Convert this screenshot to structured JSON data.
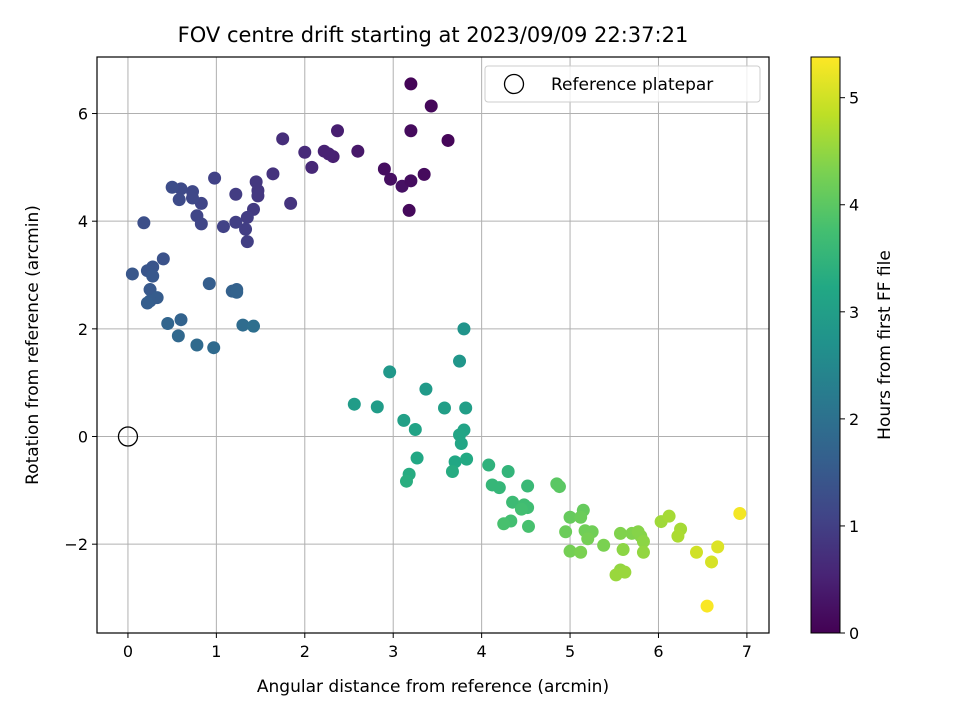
{
  "chart_data": {
    "type": "scatter",
    "title": "FOV centre drift starting at 2023/09/09 22:37:21",
    "xlabel": "Angular distance from reference (arcmin)",
    "ylabel": "Rotation from reference (arcmin)",
    "xlim": [
      -0.35,
      7.25
    ],
    "ylim": [
      -3.65,
      7.05
    ],
    "xticks": [
      0,
      1,
      2,
      3,
      4,
      5,
      6,
      7
    ],
    "yticks": [
      -2,
      0,
      2,
      4,
      6
    ],
    "xtick_labels": [
      "0",
      "1",
      "2",
      "3",
      "4",
      "5",
      "6",
      "7"
    ],
    "ytick_labels": [
      "−2",
      "0",
      "2",
      "4",
      "6"
    ],
    "grid": true,
    "colormap": "viridis",
    "colorbar": {
      "label": "Hours from first FF file",
      "range": [
        0,
        5.38
      ],
      "ticks": [
        0,
        1,
        2,
        3,
        4,
        5
      ],
      "tick_labels": [
        "0",
        "1",
        "2",
        "3",
        "4",
        "5"
      ]
    },
    "legend": {
      "position": "upper-right",
      "entries": [
        {
          "label": "Reference platepar",
          "marker": "open-circle"
        }
      ]
    },
    "reference_point": {
      "x": 0,
      "y": 0
    },
    "series": [
      {
        "points": [
          {
            "x": 3.2,
            "y": 6.55,
            "c": 0.05
          },
          {
            "x": 3.43,
            "y": 6.14,
            "c": 0.1
          },
          {
            "x": 3.2,
            "y": 5.68,
            "c": 0.15
          },
          {
            "x": 3.62,
            "y": 5.5,
            "c": 0.08
          },
          {
            "x": 2.9,
            "y": 4.97,
            "c": 0.2
          },
          {
            "x": 2.97,
            "y": 4.78,
            "c": 0.22
          },
          {
            "x": 3.1,
            "y": 4.65,
            "c": 0.25
          },
          {
            "x": 3.2,
            "y": 4.75,
            "c": 0.18
          },
          {
            "x": 3.35,
            "y": 4.87,
            "c": 0.15
          },
          {
            "x": 3.18,
            "y": 4.2,
            "c": 0.12
          },
          {
            "x": 2.6,
            "y": 5.3,
            "c": 0.35
          },
          {
            "x": 2.37,
            "y": 5.68,
            "c": 0.45
          },
          {
            "x": 2.22,
            "y": 5.3,
            "c": 0.5
          },
          {
            "x": 2.32,
            "y": 5.2,
            "c": 0.48
          },
          {
            "x": 2.27,
            "y": 5.25,
            "c": 0.5
          },
          {
            "x": 2.08,
            "y": 5.0,
            "c": 0.6
          },
          {
            "x": 2.0,
            "y": 5.28,
            "c": 0.65
          },
          {
            "x": 1.75,
            "y": 5.53,
            "c": 0.7
          },
          {
            "x": 1.64,
            "y": 4.88,
            "c": 0.78
          },
          {
            "x": 1.84,
            "y": 4.33,
            "c": 0.8
          },
          {
            "x": 1.47,
            "y": 4.57,
            "c": 0.85
          },
          {
            "x": 1.45,
            "y": 4.73,
            "c": 0.85
          },
          {
            "x": 1.47,
            "y": 4.47,
            "c": 0.88
          },
          {
            "x": 1.42,
            "y": 4.22,
            "c": 0.9
          },
          {
            "x": 1.35,
            "y": 4.07,
            "c": 0.95
          },
          {
            "x": 1.33,
            "y": 3.85,
            "c": 0.98
          },
          {
            "x": 1.35,
            "y": 3.62,
            "c": 1.0
          },
          {
            "x": 1.22,
            "y": 4.5,
            "c": 0.95
          },
          {
            "x": 1.22,
            "y": 3.98,
            "c": 1.0
          },
          {
            "x": 1.08,
            "y": 3.9,
            "c": 1.05
          },
          {
            "x": 0.98,
            "y": 4.8,
            "c": 1.05
          },
          {
            "x": 0.83,
            "y": 4.33,
            "c": 1.1
          },
          {
            "x": 0.78,
            "y": 4.1,
            "c": 1.1
          },
          {
            "x": 0.83,
            "y": 3.95,
            "c": 1.12
          },
          {
            "x": 0.73,
            "y": 4.55,
            "c": 1.15
          },
          {
            "x": 0.73,
            "y": 4.43,
            "c": 1.15
          },
          {
            "x": 0.6,
            "y": 4.6,
            "c": 1.2
          },
          {
            "x": 0.58,
            "y": 4.4,
            "c": 1.22
          },
          {
            "x": 0.5,
            "y": 4.63,
            "c": 1.25
          },
          {
            "x": 0.18,
            "y": 3.97,
            "c": 1.3
          },
          {
            "x": 0.4,
            "y": 3.3,
            "c": 1.35
          },
          {
            "x": 0.28,
            "y": 3.15,
            "c": 1.4
          },
          {
            "x": 0.22,
            "y": 3.08,
            "c": 1.42
          },
          {
            "x": 0.05,
            "y": 3.02,
            "c": 1.45
          },
          {
            "x": 0.28,
            "y": 2.98,
            "c": 1.48
          },
          {
            "x": 0.25,
            "y": 2.73,
            "c": 1.5
          },
          {
            "x": 0.33,
            "y": 2.58,
            "c": 1.55
          },
          {
            "x": 0.25,
            "y": 2.52,
            "c": 1.55
          },
          {
            "x": 0.22,
            "y": 2.48,
            "c": 1.6
          },
          {
            "x": 0.92,
            "y": 2.84,
            "c": 1.6
          },
          {
            "x": 1.18,
            "y": 2.7,
            "c": 1.65
          },
          {
            "x": 1.23,
            "y": 2.73,
            "c": 1.65
          },
          {
            "x": 1.23,
            "y": 2.68,
            "c": 1.7
          },
          {
            "x": 0.6,
            "y": 2.17,
            "c": 1.7
          },
          {
            "x": 0.45,
            "y": 2.1,
            "c": 1.75
          },
          {
            "x": 0.57,
            "y": 1.87,
            "c": 1.8
          },
          {
            "x": 0.78,
            "y": 1.7,
            "c": 1.85
          },
          {
            "x": 0.97,
            "y": 1.65,
            "c": 1.85
          },
          {
            "x": 1.3,
            "y": 2.07,
            "c": 1.9
          },
          {
            "x": 1.42,
            "y": 2.05,
            "c": 1.95
          },
          {
            "x": 3.8,
            "y": 2.0,
            "c": 2.75
          },
          {
            "x": 3.75,
            "y": 1.4,
            "c": 2.8
          },
          {
            "x": 2.96,
            "y": 1.2,
            "c": 2.85
          },
          {
            "x": 3.37,
            "y": 0.88,
            "c": 2.9
          },
          {
            "x": 2.56,
            "y": 0.6,
            "c": 2.95
          },
          {
            "x": 2.82,
            "y": 0.55,
            "c": 2.95
          },
          {
            "x": 3.58,
            "y": 0.53,
            "c": 3.0
          },
          {
            "x": 3.82,
            "y": 0.53,
            "c": 3.0
          },
          {
            "x": 3.12,
            "y": 0.3,
            "c": 3.05
          },
          {
            "x": 3.25,
            "y": 0.13,
            "c": 3.1
          },
          {
            "x": 3.8,
            "y": 0.12,
            "c": 3.1
          },
          {
            "x": 3.75,
            "y": 0.03,
            "c": 3.15
          },
          {
            "x": 3.77,
            "y": -0.13,
            "c": 3.15
          },
          {
            "x": 3.27,
            "y": -0.4,
            "c": 3.2
          },
          {
            "x": 3.7,
            "y": -0.47,
            "c": 3.2
          },
          {
            "x": 3.83,
            "y": -0.42,
            "c": 3.25
          },
          {
            "x": 3.67,
            "y": -0.65,
            "c": 3.3
          },
          {
            "x": 3.18,
            "y": -0.7,
            "c": 3.3
          },
          {
            "x": 3.15,
            "y": -0.83,
            "c": 3.35
          },
          {
            "x": 4.08,
            "y": -0.53,
            "c": 3.45
          },
          {
            "x": 4.3,
            "y": -0.65,
            "c": 3.5
          },
          {
            "x": 4.12,
            "y": -0.9,
            "c": 3.55
          },
          {
            "x": 4.2,
            "y": -0.95,
            "c": 3.55
          },
          {
            "x": 4.52,
            "y": -0.92,
            "c": 3.6
          },
          {
            "x": 4.35,
            "y": -1.22,
            "c": 3.65
          },
          {
            "x": 4.48,
            "y": -1.27,
            "c": 3.7
          },
          {
            "x": 4.52,
            "y": -1.32,
            "c": 3.7
          },
          {
            "x": 4.45,
            "y": -1.35,
            "c": 3.75
          },
          {
            "x": 4.33,
            "y": -1.57,
            "c": 3.75
          },
          {
            "x": 4.25,
            "y": -1.62,
            "c": 3.8
          },
          {
            "x": 4.53,
            "y": -1.67,
            "c": 3.8
          },
          {
            "x": 4.85,
            "y": -0.88,
            "c": 4.0
          },
          {
            "x": 4.88,
            "y": -0.93,
            "c": 4.0
          },
          {
            "x": 5.0,
            "y": -1.5,
            "c": 4.1
          },
          {
            "x": 5.15,
            "y": -1.37,
            "c": 4.1
          },
          {
            "x": 5.12,
            "y": -1.5,
            "c": 4.15
          },
          {
            "x": 4.95,
            "y": -1.77,
            "c": 4.15
          },
          {
            "x": 5.17,
            "y": -1.75,
            "c": 4.2
          },
          {
            "x": 5.25,
            "y": -1.77,
            "c": 4.2
          },
          {
            "x": 5.2,
            "y": -1.9,
            "c": 4.25
          },
          {
            "x": 5.0,
            "y": -2.13,
            "c": 4.25
          },
          {
            "x": 5.12,
            "y": -2.15,
            "c": 4.3
          },
          {
            "x": 5.38,
            "y": -2.02,
            "c": 4.3
          },
          {
            "x": 5.57,
            "y": -1.8,
            "c": 4.35
          },
          {
            "x": 5.7,
            "y": -1.8,
            "c": 4.35
          },
          {
            "x": 5.77,
            "y": -1.77,
            "c": 4.4
          },
          {
            "x": 5.8,
            "y": -1.85,
            "c": 4.4
          },
          {
            "x": 5.83,
            "y": -1.95,
            "c": 4.45
          },
          {
            "x": 5.6,
            "y": -2.1,
            "c": 4.45
          },
          {
            "x": 5.83,
            "y": -2.15,
            "c": 4.5
          },
          {
            "x": 5.57,
            "y": -2.48,
            "c": 4.5
          },
          {
            "x": 5.52,
            "y": -2.57,
            "c": 4.55
          },
          {
            "x": 5.62,
            "y": -2.52,
            "c": 4.55
          },
          {
            "x": 6.03,
            "y": -1.58,
            "c": 4.6
          },
          {
            "x": 6.12,
            "y": -1.48,
            "c": 4.65
          },
          {
            "x": 6.25,
            "y": -1.72,
            "c": 4.65
          },
          {
            "x": 6.22,
            "y": -1.85,
            "c": 4.7
          },
          {
            "x": 6.43,
            "y": -2.15,
            "c": 5.0
          },
          {
            "x": 6.6,
            "y": -2.33,
            "c": 5.05
          },
          {
            "x": 6.67,
            "y": -2.05,
            "c": 5.1
          },
          {
            "x": 6.92,
            "y": -1.43,
            "c": 5.3
          },
          {
            "x": 6.55,
            "y": -3.15,
            "c": 5.35
          }
        ]
      }
    ]
  }
}
